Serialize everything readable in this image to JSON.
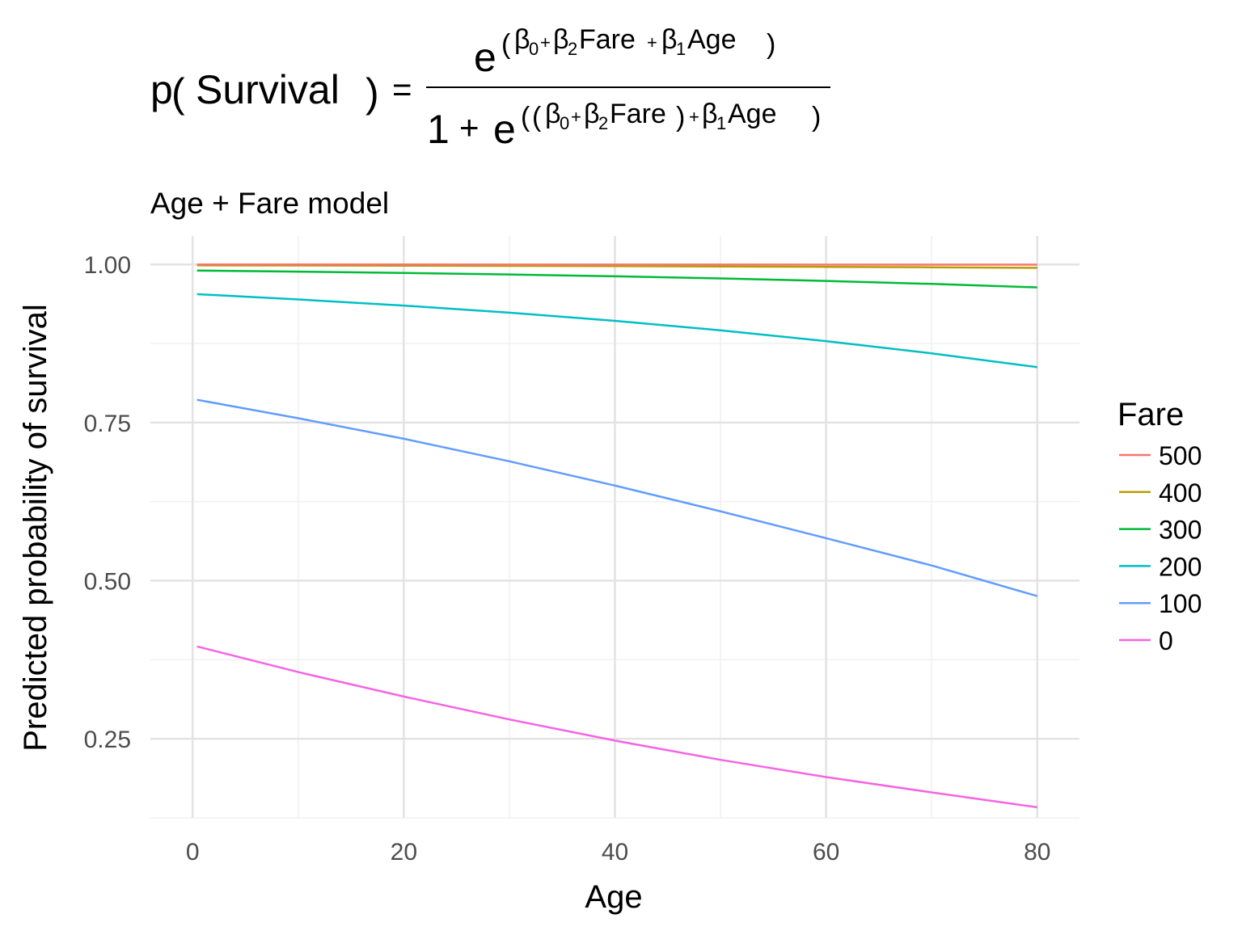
{
  "chart_data": {
    "type": "line",
    "title": {
      "lhs": "p",
      "lhs_arg": "Survival",
      "equals": "=",
      "numerator_base": "e",
      "numerator_exponent": {
        "beta": "β",
        "s0": "0",
        "plus1": "+",
        "s2": "2",
        "fare": "Fare",
        "plus2": "+",
        "s1": "1",
        "age": "Age"
      },
      "denominator_one": "1",
      "denominator_plus": "+",
      "denominator_base": "e"
    },
    "subtitle": "Age + Fare model",
    "xlabel": "Age",
    "ylabel": "Predicted probability of survival",
    "xlim": [
      -4,
      84
    ],
    "ylim": [
      0.125,
      1.045
    ],
    "x_ticks": [
      0,
      20,
      40,
      60,
      80
    ],
    "x_tick_labels": [
      "0",
      "20",
      "40",
      "60",
      "80"
    ],
    "x_minor_ticks": [
      10,
      30,
      50,
      70
    ],
    "y_ticks": [
      0.25,
      0.5,
      0.75,
      1.0
    ],
    "y_tick_labels": [
      "0.25",
      "0.50",
      "0.75",
      "1.00"
    ],
    "y_minor_ticks": [
      0.125,
      0.375,
      0.625,
      0.875
    ],
    "grid": true,
    "legend": {
      "title": "Fare",
      "placement": "right"
    },
    "x": [
      0.42,
      10,
      20,
      30,
      40,
      50,
      60,
      70,
      80
    ],
    "series": [
      {
        "name": "500",
        "color": "#F8766D",
        "values": [
          0.9999,
          0.9999,
          0.9999,
          0.9998,
          0.9998,
          0.9998,
          0.9997,
          0.9997,
          0.9996
        ]
      },
      {
        "name": "400",
        "color": "#B79F00",
        "values": [
          0.9986,
          0.9984,
          0.9981,
          0.9977,
          0.9973,
          0.9968,
          0.9962,
          0.9955,
          0.9947
        ]
      },
      {
        "name": "300",
        "color": "#00BA38",
        "values": [
          0.9905,
          0.9887,
          0.9866,
          0.9842,
          0.9813,
          0.9779,
          0.9739,
          0.9692,
          0.9637
        ]
      },
      {
        "name": "200",
        "color": "#00BFC4",
        "values": [
          0.953,
          0.9447,
          0.935,
          0.9238,
          0.9108,
          0.8959,
          0.8788,
          0.8595,
          0.8376
        ]
      },
      {
        "name": "100",
        "color": "#619CFF",
        "values": [
          0.786,
          0.7569,
          0.7244,
          0.6888,
          0.6504,
          0.6097,
          0.5673,
          0.524,
          0.4756
        ]
      },
      {
        "name": "0",
        "color": "#F564E3",
        "values": [
          0.396,
          0.3555,
          0.3168,
          0.2806,
          0.2472,
          0.2168,
          0.1895,
          0.1652,
          0.1417
        ]
      }
    ]
  }
}
